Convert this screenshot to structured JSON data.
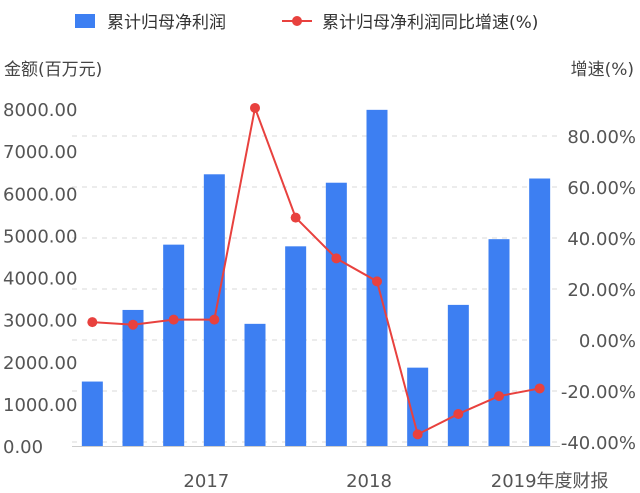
{
  "legend": {
    "bar_label": "累计归母净利润",
    "line_label": "累计归母净利润同比增速(%)"
  },
  "chart_data": {
    "type": "bar",
    "left_axis_title": "金额(百万元)",
    "right_axis_title": "增速(%)",
    "x_tick_labels": [
      "2017",
      "2018",
      "2019年度财报"
    ],
    "left_ticks": [
      "0.00",
      "1000.00",
      "2000.00",
      "3000.00",
      "4000.00",
      "5000.00",
      "6000.00",
      "7000.00",
      "8000.00"
    ],
    "right_ticks": [
      "-40.00%",
      "-20.00%",
      "0.00%",
      "20.00%",
      "40.00%",
      "60.00%",
      "80.00%"
    ],
    "left_ylim": [
      0,
      8000
    ],
    "right_ylim": [
      -40,
      80
    ],
    "grid": "horizontal-dashed",
    "legend_position": "top",
    "series": [
      {
        "name": "累计归母净利润",
        "type": "bar",
        "axis": "left",
        "color": "#3d7ff2",
        "values": [
          1530,
          3230,
          4780,
          6450,
          2900,
          4740,
          6250,
          7980,
          1860,
          3350,
          4910,
          6350
        ]
      },
      {
        "name": "累计归母净利润同比增速(%)",
        "type": "line",
        "axis": "right",
        "color": "#e8413e",
        "values": [
          7,
          6,
          8,
          8,
          91,
          48,
          32,
          23,
          -37,
          -29,
          -22,
          -19
        ]
      }
    ]
  }
}
